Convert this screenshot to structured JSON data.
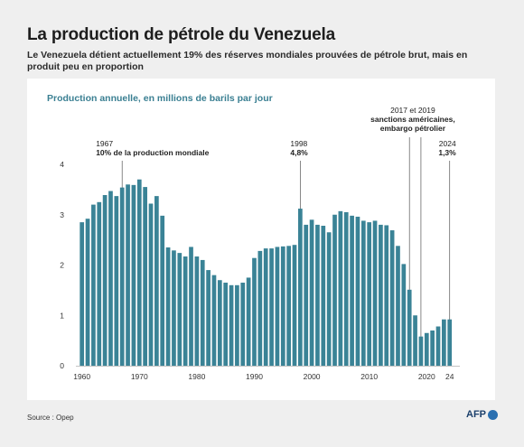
{
  "title": "La production de pétrole du Venezuela",
  "subtitle": "Le Venezuela détient actuellement 19% des réserves mondiales prouvées de pétrole brut, mais en produit peu en proportion",
  "source": "Source : Opep",
  "logo": "AFP",
  "colors": {
    "bar": "#3a8396",
    "title_accent": "#3a7f92",
    "background": "#efefef"
  },
  "chart_data": {
    "type": "bar",
    "title": "Production annuelle, en millions de barils par jour",
    "xlabel": "",
    "ylabel": "",
    "ylim": [
      0,
      4
    ],
    "yticks": [
      0,
      1,
      2,
      3,
      4
    ],
    "xtick_labels": [
      {
        "year": 1960,
        "label": "1960"
      },
      {
        "year": 1970,
        "label": "1970"
      },
      {
        "year": 1980,
        "label": "1980"
      },
      {
        "year": 1990,
        "label": "1990"
      },
      {
        "year": 2000,
        "label": "2000"
      },
      {
        "year": 2010,
        "label": "2010"
      },
      {
        "year": 2020,
        "label": "2020"
      },
      {
        "year": 2024,
        "label": "24"
      }
    ],
    "grid": false,
    "legend": "none",
    "categories": [
      1960,
      1961,
      1962,
      1963,
      1964,
      1965,
      1966,
      1967,
      1968,
      1969,
      1970,
      1971,
      1972,
      1973,
      1974,
      1975,
      1976,
      1977,
      1978,
      1979,
      1980,
      1981,
      1982,
      1983,
      1984,
      1985,
      1986,
      1987,
      1988,
      1989,
      1990,
      1991,
      1992,
      1993,
      1994,
      1995,
      1996,
      1997,
      1998,
      1999,
      2000,
      2001,
      2002,
      2003,
      2004,
      2005,
      2006,
      2007,
      2008,
      2009,
      2010,
      2011,
      2012,
      2013,
      2014,
      2015,
      2016,
      2017,
      2018,
      2019,
      2020,
      2021,
      2022,
      2023,
      2024
    ],
    "values": [
      2.85,
      2.92,
      3.2,
      3.25,
      3.39,
      3.47,
      3.37,
      3.54,
      3.6,
      3.59,
      3.7,
      3.55,
      3.22,
      3.37,
      2.98,
      2.35,
      2.29,
      2.24,
      2.17,
      2.36,
      2.17,
      2.1,
      1.9,
      1.8,
      1.7,
      1.65,
      1.6,
      1.6,
      1.65,
      1.75,
      2.14,
      2.28,
      2.33,
      2.33,
      2.36,
      2.37,
      2.38,
      2.4,
      3.12,
      2.8,
      2.9,
      2.8,
      2.78,
      2.65,
      3.0,
      3.07,
      3.05,
      2.98,
      2.96,
      2.88,
      2.85,
      2.88,
      2.8,
      2.79,
      2.69,
      2.38,
      2.02,
      1.51,
      1.0,
      0.58,
      0.65,
      0.7,
      0.78,
      0.92,
      0.92
    ],
    "annotations": [
      {
        "year": 1967,
        "lines": [
          "1967",
          "10% de la production mondiale"
        ]
      },
      {
        "year": 1998,
        "lines": [
          "1998",
          "4,8%"
        ]
      },
      {
        "year": 2017,
        "lines": []
      },
      {
        "year": 2019,
        "lines": [
          "2017 et 2019",
          "sanctions américaines,",
          "embargo pétrolier"
        ]
      },
      {
        "year": 2024,
        "lines": [
          "2024",
          "1,3%"
        ]
      }
    ]
  }
}
